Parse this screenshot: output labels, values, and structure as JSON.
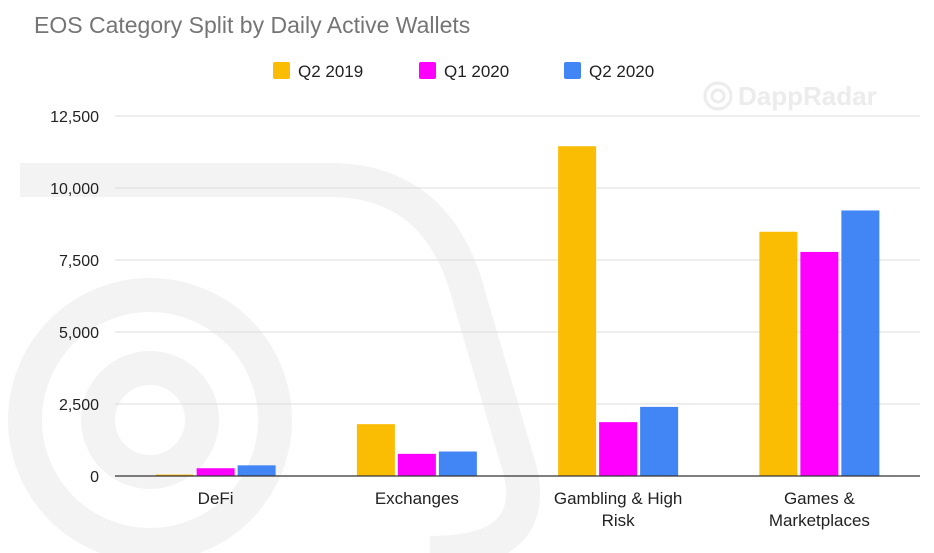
{
  "watermark": {
    "text": "DappRadar",
    "icon": "dappradar-logo-icon"
  },
  "chart_data": {
    "type": "bar",
    "title": "EOS Category Split by Daily Active Wallets",
    "xlabel": "",
    "ylabel": "",
    "categories": [
      [
        "DeFi"
      ],
      [
        "Exchanges"
      ],
      [
        "Gambling & High",
        "Risk"
      ],
      [
        "Games &",
        "Marketplaces"
      ]
    ],
    "series": [
      {
        "name": "Q2 2019",
        "color": "#fbbc04",
        "values": [
          50,
          1800,
          11450,
          8480
        ]
      },
      {
        "name": "Q1 2020",
        "color": "#ff00ff",
        "values": [
          270,
          770,
          1870,
          7780
        ]
      },
      {
        "name": "Q2 2020",
        "color": "#4285f4",
        "values": [
          370,
          850,
          2400,
          9220
        ]
      }
    ],
    "ylim": [
      0,
      12500
    ],
    "yticks": [
      0,
      2500,
      5000,
      7500,
      10000,
      12500
    ],
    "ytick_labels": [
      "0",
      "2,500",
      "5,000",
      "7,500",
      "10,000",
      "12,500"
    ],
    "grid": true,
    "legend_position": "top-center",
    "colors": {
      "gridline": "#dcdcdc",
      "axis": "#333333",
      "title": "#757575"
    }
  }
}
